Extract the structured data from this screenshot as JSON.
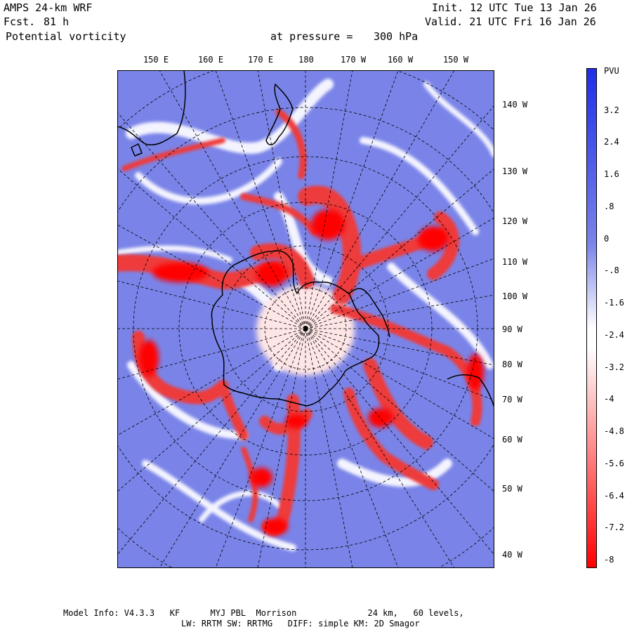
{
  "header": {
    "model": "AMPS 24-km WRF",
    "fcst_label": "Fcst.",
    "fcst_value": "81 h",
    "field": "Potential vorticity",
    "level_label": "at pressure =",
    "level_value": "300 hPa",
    "init": "Init. 12 UTC Tue 13 Jan 26",
    "valid": "Valid. 21 UTC Fri 16 Jan 26"
  },
  "map": {
    "lon_labels": [
      "150 E",
      "160 E",
      "170 E",
      "180",
      "170 W",
      "160 W",
      "150 W"
    ],
    "lat_labels": [
      "140 W",
      "130 W",
      "120 W",
      "110 W",
      "100 W",
      "90 W",
      "80 W",
      "70 W",
      "60 W",
      "50 W",
      "40 W"
    ]
  },
  "colorbar": {
    "unit": "PVU",
    "labels": [
      "3.2",
      "2.4",
      "1.6",
      ".8",
      "0",
      "-.8",
      "-1.6",
      "-2.4",
      "-3.2",
      "-4",
      "-4.8",
      "-5.6",
      "-6.4",
      "-7.2",
      "-8"
    ],
    "colors": {
      "positive_max": "#1f2fe8",
      "neutral": "#ffffff",
      "negative_max": "#ff0000",
      "ocean_background": "#7a84e8"
    }
  },
  "footer": {
    "line1": "Model Info: V4.3.3   KF      MYJ PBL  Morrison              24 km,   60 levels,",
    "line2": "LW: RRTM SW: RRTMG   DIFF: simple KM: 2D Smagor"
  }
}
